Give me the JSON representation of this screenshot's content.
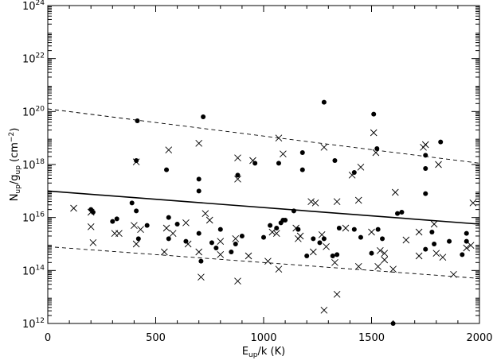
{
  "chart_data": {
    "type": "scatter",
    "xlabel_parts": {
      "main": "E",
      "sub": "up",
      "rest": "/k (K)"
    },
    "ylabel_parts": {
      "n": "N",
      "nsub": "up",
      "slash": "/g",
      "gsub": "up",
      "unit_open": " (cm",
      "unit_exp": "−2",
      "unit_close": ")"
    },
    "xlim": [
      0,
      2000
    ],
    "ylim_log10": [
      12,
      24
    ],
    "log_y": true,
    "grid": false,
    "legend": "none",
    "x_ticks": [
      0,
      500,
      1000,
      1500,
      2000
    ],
    "y_tick_exponents": [
      12,
      14,
      16,
      18,
      20,
      22,
      24
    ],
    "y_tick_base": "10",
    "series": [
      {
        "marker": "filled-circle",
        "points": [
          [
            200,
            16.3
          ],
          [
            210,
            16.2
          ],
          [
            300,
            15.85
          ],
          [
            320,
            15.95
          ],
          [
            390,
            16.55
          ],
          [
            410,
            16.25
          ],
          [
            410,
            18.15
          ],
          [
            415,
            19.65
          ],
          [
            420,
            15.2
          ],
          [
            460,
            15.7
          ],
          [
            550,
            17.8
          ],
          [
            560,
            16.0
          ],
          [
            560,
            15.2
          ],
          [
            600,
            15.75
          ],
          [
            640,
            15.1
          ],
          [
            700,
            17.45
          ],
          [
            700,
            17.0
          ],
          [
            700,
            15.4
          ],
          [
            710,
            14.35
          ],
          [
            720,
            19.8
          ],
          [
            760,
            15.05
          ],
          [
            780,
            14.85
          ],
          [
            800,
            15.55
          ],
          [
            850,
            14.7
          ],
          [
            870,
            15.0
          ],
          [
            880,
            17.6
          ],
          [
            900,
            15.3
          ],
          [
            960,
            18.05
          ],
          [
            1000,
            15.25
          ],
          [
            1030,
            15.7
          ],
          [
            1060,
            15.6
          ],
          [
            1070,
            18.05
          ],
          [
            1080,
            15.8
          ],
          [
            1090,
            15.9
          ],
          [
            1100,
            15.9
          ],
          [
            1140,
            16.25
          ],
          [
            1160,
            15.55
          ],
          [
            1180,
            17.8
          ],
          [
            1180,
            18.45
          ],
          [
            1200,
            14.55
          ],
          [
            1230,
            15.2
          ],
          [
            1260,
            15.05
          ],
          [
            1280,
            15.2
          ],
          [
            1280,
            20.35
          ],
          [
            1320,
            14.55
          ],
          [
            1330,
            18.15
          ],
          [
            1350,
            15.6
          ],
          [
            1420,
            17.7
          ],
          [
            1420,
            15.55
          ],
          [
            1450,
            15.25
          ],
          [
            1500,
            14.65
          ],
          [
            1510,
            19.9
          ],
          [
            1525,
            18.6
          ],
          [
            1530,
            15.55
          ],
          [
            1550,
            15.2
          ],
          [
            1600,
            12.0
          ],
          [
            1620,
            16.15
          ],
          [
            1750,
            18.35
          ],
          [
            1750,
            17.85
          ],
          [
            1750,
            16.9
          ],
          [
            1750,
            14.8
          ],
          [
            1780,
            15.45
          ],
          [
            1790,
            15.0
          ],
          [
            1820,
            18.85
          ],
          [
            1860,
            15.1
          ],
          [
            1920,
            14.6
          ],
          [
            1940,
            15.4
          ],
          [
            1940,
            15.1
          ],
          [
            1640,
            16.2
          ],
          [
            1340,
            14.6
          ]
        ]
      },
      {
        "marker": "cross",
        "points": [
          [
            120,
            16.35
          ],
          [
            200,
            16.2
          ],
          [
            200,
            15.65
          ],
          [
            210,
            15.05
          ],
          [
            310,
            15.4
          ],
          [
            330,
            15.4
          ],
          [
            400,
            15.7
          ],
          [
            410,
            15.0
          ],
          [
            410,
            18.1
          ],
          [
            430,
            15.55
          ],
          [
            540,
            14.7
          ],
          [
            550,
            15.6
          ],
          [
            560,
            18.55
          ],
          [
            580,
            15.4
          ],
          [
            640,
            15.8
          ],
          [
            650,
            15.0
          ],
          [
            700,
            18.8
          ],
          [
            700,
            14.7
          ],
          [
            710,
            13.75
          ],
          [
            730,
            16.15
          ],
          [
            750,
            15.9
          ],
          [
            800,
            14.6
          ],
          [
            800,
            15.1
          ],
          [
            870,
            15.2
          ],
          [
            880,
            17.45
          ],
          [
            880,
            18.25
          ],
          [
            880,
            13.6
          ],
          [
            930,
            14.55
          ],
          [
            950,
            18.15
          ],
          [
            1020,
            14.35
          ],
          [
            1040,
            15.45
          ],
          [
            1060,
            15.4
          ],
          [
            1070,
            14.05
          ],
          [
            1070,
            19.0
          ],
          [
            1090,
            18.4
          ],
          [
            1150,
            15.6
          ],
          [
            1160,
            15.2
          ],
          [
            1170,
            15.3
          ],
          [
            1220,
            16.6
          ],
          [
            1230,
            14.7
          ],
          [
            1240,
            16.55
          ],
          [
            1270,
            15.35
          ],
          [
            1280,
            18.65
          ],
          [
            1280,
            12.5
          ],
          [
            1290,
            14.9
          ],
          [
            1330,
            14.3
          ],
          [
            1340,
            16.6
          ],
          [
            1380,
            15.6
          ],
          [
            1410,
            17.6
          ],
          [
            1440,
            16.65
          ],
          [
            1440,
            14.15
          ],
          [
            1450,
            17.9
          ],
          [
            1500,
            15.45
          ],
          [
            1510,
            19.2
          ],
          [
            1520,
            18.45
          ],
          [
            1540,
            14.75
          ],
          [
            1560,
            14.65
          ],
          [
            1560,
            14.4
          ],
          [
            1600,
            14.05
          ],
          [
            1610,
            16.95
          ],
          [
            1720,
            15.45
          ],
          [
            1720,
            14.55
          ],
          [
            1740,
            18.65
          ],
          [
            1750,
            18.75
          ],
          [
            1790,
            15.75
          ],
          [
            1800,
            14.65
          ],
          [
            1810,
            18.0
          ],
          [
            1830,
            14.5
          ],
          [
            1880,
            13.85
          ],
          [
            1960,
            14.95
          ],
          [
            1970,
            16.55
          ],
          [
            1940,
            14.85
          ],
          [
            1660,
            15.15
          ],
          [
            1530,
            14.15
          ],
          [
            1340,
            13.1
          ]
        ]
      }
    ],
    "fit_line": {
      "style": "solid",
      "x": [
        0,
        2000
      ],
      "y_log10": [
        17.0,
        15.75
      ]
    },
    "bound_lines": [
      {
        "style": "dashed",
        "x": [
          0,
          2000
        ],
        "y_log10": [
          20.1,
          18.05
        ]
      },
      {
        "style": "dashed",
        "x": [
          0,
          2000
        ],
        "y_log10": [
          14.9,
          13.7
        ]
      }
    ]
  }
}
